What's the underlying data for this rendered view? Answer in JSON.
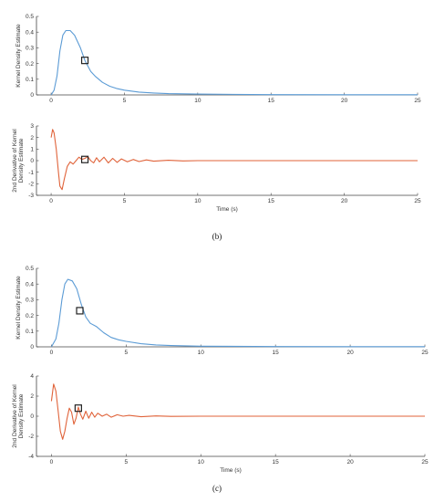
{
  "panels": [
    {
      "label": "(b)"
    },
    {
      "label": "(c)"
    }
  ],
  "colors": {
    "kde": "#5b9bd5",
    "derivative": "#e0633a",
    "marker": "#222222",
    "axis": "#444444"
  },
  "chart_data": [
    {
      "type": "line",
      "panel": "b",
      "ylabel": "Kernel Density Estimate",
      "xlabel": "",
      "xlim": [
        -1,
        25
      ],
      "ylim": [
        0,
        0.5
      ],
      "xticks": [
        0,
        5,
        10,
        15,
        20,
        25
      ],
      "yticks": [
        0,
        0.1,
        0.2,
        0.3,
        0.4,
        0.5
      ],
      "series": [
        {
          "points": [
            [
              0,
              0
            ],
            [
              0.2,
              0.03
            ],
            [
              0.4,
              0.12
            ],
            [
              0.6,
              0.28
            ],
            [
              0.8,
              0.38
            ],
            [
              1.0,
              0.41
            ],
            [
              1.3,
              0.41
            ],
            [
              1.6,
              0.38
            ],
            [
              2.0,
              0.3
            ],
            [
              2.3,
              0.22
            ],
            [
              2.7,
              0.15
            ],
            [
              3.0,
              0.12
            ],
            [
              3.5,
              0.08
            ],
            [
              4.0,
              0.055
            ],
            [
              4.5,
              0.04
            ],
            [
              5.0,
              0.03
            ],
            [
              6.0,
              0.018
            ],
            [
              7.0,
              0.012
            ],
            [
              8.0,
              0.008
            ],
            [
              10.0,
              0.005
            ],
            [
              15.0,
              0.002
            ],
            [
              20.0,
              0.001
            ],
            [
              25.0,
              0.001
            ]
          ]
        }
      ],
      "marker": {
        "x": 2.3,
        "y": 0.22
      }
    },
    {
      "type": "line",
      "panel": "b",
      "ylabel": "2nd Derivative of Kernel Density Estimate",
      "xlabel": "Time (s)",
      "xlim": [
        -1,
        25
      ],
      "ylim": [
        -3,
        3
      ],
      "xticks": [
        0,
        5,
        10,
        15,
        20,
        25
      ],
      "yticks": [
        -3,
        -2,
        -1,
        0,
        1,
        2,
        3
      ],
      "series": [
        {
          "points": [
            [
              0,
              2.0
            ],
            [
              0.1,
              2.7
            ],
            [
              0.2,
              2.4
            ],
            [
              0.35,
              1.0
            ],
            [
              0.5,
              -1.0
            ],
            [
              0.6,
              -2.2
            ],
            [
              0.75,
              -2.5
            ],
            [
              0.9,
              -1.6
            ],
            [
              1.1,
              -0.5
            ],
            [
              1.3,
              -0.1
            ],
            [
              1.5,
              -0.3
            ],
            [
              1.7,
              0.0
            ],
            [
              1.9,
              0.3
            ],
            [
              2.1,
              0.1
            ],
            [
              2.3,
              0.2
            ],
            [
              2.5,
              0.35
            ],
            [
              2.7,
              0.0
            ],
            [
              2.9,
              -0.2
            ],
            [
              3.1,
              0.25
            ],
            [
              3.3,
              -0.1
            ],
            [
              3.6,
              0.3
            ],
            [
              3.9,
              -0.2
            ],
            [
              4.2,
              0.2
            ],
            [
              4.5,
              -0.15
            ],
            [
              4.8,
              0.15
            ],
            [
              5.2,
              -0.1
            ],
            [
              5.6,
              0.1
            ],
            [
              6.0,
              -0.08
            ],
            [
              6.5,
              0.06
            ],
            [
              7.0,
              -0.05
            ],
            [
              8.0,
              0.03
            ],
            [
              9.0,
              -0.02
            ],
            [
              10.0,
              0.0
            ],
            [
              25.0,
              0.0
            ]
          ]
        }
      ],
      "marker": {
        "x": 2.3,
        "y": 0.1
      }
    },
    {
      "type": "line",
      "panel": "c",
      "ylabel": "Kernel Density Estimate",
      "xlabel": "",
      "xlim": [
        -1,
        25
      ],
      "ylim": [
        0,
        0.5
      ],
      "xticks": [
        0,
        5,
        10,
        15,
        20,
        25
      ],
      "yticks": [
        0,
        0.1,
        0.2,
        0.3,
        0.4,
        0.5
      ],
      "series": [
        {
          "points": [
            [
              0,
              0
            ],
            [
              0.3,
              0.05
            ],
            [
              0.5,
              0.15
            ],
            [
              0.7,
              0.3
            ],
            [
              0.9,
              0.4
            ],
            [
              1.1,
              0.43
            ],
            [
              1.4,
              0.42
            ],
            [
              1.7,
              0.37
            ],
            [
              2.0,
              0.27
            ],
            [
              2.3,
              0.19
            ],
            [
              2.6,
              0.15
            ],
            [
              3.0,
              0.13
            ],
            [
              3.5,
              0.09
            ],
            [
              4.0,
              0.06
            ],
            [
              4.5,
              0.045
            ],
            [
              5.0,
              0.035
            ],
            [
              6.0,
              0.02
            ],
            [
              7.0,
              0.012
            ],
            [
              8.0,
              0.008
            ],
            [
              10.0,
              0.004
            ],
            [
              15.0,
              0.002
            ],
            [
              20.0,
              0.001
            ],
            [
              25.0,
              0.001
            ]
          ]
        }
      ],
      "marker": {
        "x": 1.9,
        "y": 0.23
      }
    },
    {
      "type": "line",
      "panel": "c",
      "ylabel": "2nd Derivative of Kernel Density Estimate",
      "xlabel": "Time (s)",
      "xlim": [
        -1,
        25
      ],
      "ylim": [
        -4,
        4
      ],
      "xticks": [
        0,
        5,
        10,
        15,
        20,
        25
      ],
      "yticks": [
        -4,
        -2,
        0,
        2,
        4
      ],
      "series": [
        {
          "points": [
            [
              0,
              1.5
            ],
            [
              0.15,
              3.2
            ],
            [
              0.3,
              2.5
            ],
            [
              0.45,
              0.5
            ],
            [
              0.6,
              -1.5
            ],
            [
              0.75,
              -2.3
            ],
            [
              0.9,
              -1.5
            ],
            [
              1.05,
              -0.2
            ],
            [
              1.2,
              0.8
            ],
            [
              1.35,
              0.4
            ],
            [
              1.5,
              -0.8
            ],
            [
              1.65,
              -0.2
            ],
            [
              1.8,
              0.9
            ],
            [
              1.95,
              0.2
            ],
            [
              2.1,
              -0.3
            ],
            [
              2.3,
              0.5
            ],
            [
              2.5,
              -0.2
            ],
            [
              2.7,
              0.4
            ],
            [
              2.9,
              -0.1
            ],
            [
              3.1,
              0.3
            ],
            [
              3.4,
              0.0
            ],
            [
              3.7,
              0.2
            ],
            [
              4.0,
              -0.1
            ],
            [
              4.4,
              0.15
            ],
            [
              4.8,
              0.0
            ],
            [
              5.2,
              0.08
            ],
            [
              6.0,
              -0.05
            ],
            [
              7.0,
              0.03
            ],
            [
              8.0,
              -0.02
            ],
            [
              10.0,
              0.0
            ],
            [
              25.0,
              0.0
            ]
          ]
        }
      ],
      "marker": {
        "x": 1.8,
        "y": 0.8
      }
    }
  ]
}
